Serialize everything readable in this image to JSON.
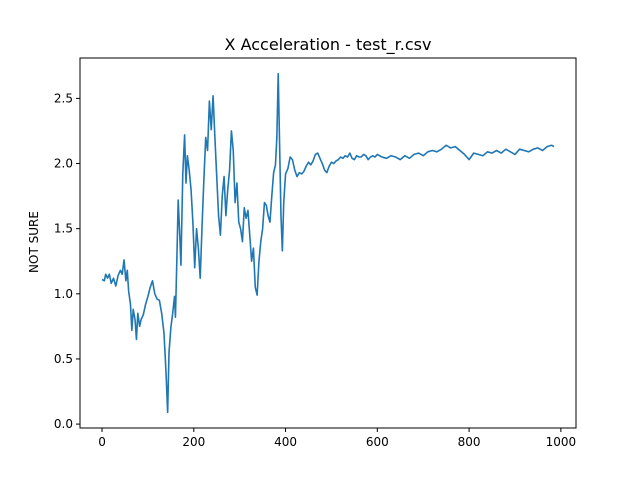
{
  "chart_data": {
    "type": "line",
    "title": "X Acceleration - test_r.csv",
    "xlabel": "",
    "ylabel": "NOT SURE",
    "xlim": [
      -48,
      1033
    ],
    "ylim": [
      -0.03,
      2.81
    ],
    "x_ticks": [
      0,
      200,
      400,
      600,
      800,
      1000
    ],
    "y_ticks": [
      0.0,
      0.5,
      1.0,
      1.5,
      2.0,
      2.5
    ],
    "x_tick_labels": [
      "0",
      "200",
      "400",
      "600",
      "800",
      "1000"
    ],
    "y_tick_labels": [
      "0.0",
      "0.5",
      "1.0",
      "1.5",
      "2.0",
      "2.5"
    ],
    "grid": false,
    "series": [
      {
        "color": "#1f77b4",
        "points": [
          [
            0,
            1.11
          ],
          [
            5,
            1.1
          ],
          [
            8,
            1.15
          ],
          [
            12,
            1.12
          ],
          [
            16,
            1.15
          ],
          [
            20,
            1.08
          ],
          [
            25,
            1.12
          ],
          [
            30,
            1.06
          ],
          [
            35,
            1.14
          ],
          [
            40,
            1.18
          ],
          [
            44,
            1.15
          ],
          [
            48,
            1.26
          ],
          [
            52,
            1.1
          ],
          [
            55,
            1.18
          ],
          [
            58,
            1.02
          ],
          [
            62,
            0.92
          ],
          [
            65,
            0.72
          ],
          [
            68,
            0.88
          ],
          [
            72,
            0.8
          ],
          [
            75,
            0.65
          ],
          [
            78,
            0.85
          ],
          [
            82,
            0.75
          ],
          [
            85,
            0.8
          ],
          [
            90,
            0.84
          ],
          [
            95,
            0.92
          ],
          [
            100,
            0.98
          ],
          [
            105,
            1.05
          ],
          [
            110,
            1.1
          ],
          [
            115,
            1.0
          ],
          [
            120,
            0.96
          ],
          [
            125,
            0.95
          ],
          [
            130,
            0.85
          ],
          [
            135,
            0.7
          ],
          [
            138,
            0.5
          ],
          [
            140,
            0.35
          ],
          [
            143,
            0.09
          ],
          [
            146,
            0.55
          ],
          [
            150,
            0.74
          ],
          [
            154,
            0.85
          ],
          [
            158,
            0.98
          ],
          [
            160,
            0.82
          ],
          [
            163,
            1.25
          ],
          [
            166,
            1.72
          ],
          [
            170,
            1.4
          ],
          [
            172,
            1.22
          ],
          [
            176,
            1.92
          ],
          [
            180,
            2.22
          ],
          [
            183,
            1.85
          ],
          [
            186,
            2.06
          ],
          [
            190,
            1.95
          ],
          [
            194,
            1.8
          ],
          [
            198,
            1.55
          ],
          [
            202,
            1.2
          ],
          [
            206,
            1.5
          ],
          [
            210,
            1.35
          ],
          [
            214,
            1.12
          ],
          [
            218,
            1.52
          ],
          [
            222,
            1.88
          ],
          [
            226,
            2.2
          ],
          [
            230,
            2.1
          ],
          [
            234,
            2.48
          ],
          [
            238,
            2.26
          ],
          [
            242,
            2.52
          ],
          [
            246,
            2.2
          ],
          [
            250,
            1.9
          ],
          [
            254,
            1.6
          ],
          [
            258,
            1.45
          ],
          [
            262,
            1.75
          ],
          [
            266,
            1.9
          ],
          [
            270,
            1.6
          ],
          [
            274,
            1.8
          ],
          [
            278,
            1.95
          ],
          [
            282,
            2.25
          ],
          [
            286,
            2.1
          ],
          [
            290,
            1.7
          ],
          [
            294,
            1.85
          ],
          [
            298,
            1.55
          ],
          [
            302,
            1.5
          ],
          [
            306,
            1.4
          ],
          [
            310,
            1.66
          ],
          [
            314,
            1.58
          ],
          [
            318,
            1.64
          ],
          [
            322,
            1.45
          ],
          [
            326,
            1.25
          ],
          [
            330,
            1.35
          ],
          [
            334,
            1.05
          ],
          [
            338,
            0.99
          ],
          [
            342,
            1.25
          ],
          [
            346,
            1.4
          ],
          [
            350,
            1.5
          ],
          [
            354,
            1.7
          ],
          [
            358,
            1.68
          ],
          [
            362,
            1.6
          ],
          [
            366,
            1.55
          ],
          [
            370,
            1.75
          ],
          [
            374,
            1.93
          ],
          [
            378,
            1.99
          ],
          [
            381,
            2.2
          ],
          [
            384,
            2.69
          ],
          [
            387,
            2.15
          ],
          [
            390,
            1.6
          ],
          [
            393,
            1.33
          ],
          [
            396,
            1.7
          ],
          [
            400,
            1.92
          ],
          [
            405,
            1.96
          ],
          [
            410,
            2.05
          ],
          [
            415,
            2.03
          ],
          [
            420,
            1.95
          ],
          [
            425,
            1.9
          ],
          [
            430,
            1.93
          ],
          [
            435,
            1.92
          ],
          [
            440,
            1.94
          ],
          [
            445,
            1.98
          ],
          [
            450,
            2.01
          ],
          [
            455,
            1.99
          ],
          [
            460,
            2.02
          ],
          [
            465,
            2.07
          ],
          [
            470,
            2.08
          ],
          [
            475,
            2.04
          ],
          [
            480,
            2.0
          ],
          [
            485,
            1.95
          ],
          [
            490,
            1.93
          ],
          [
            495,
            1.98
          ],
          [
            500,
            2.01
          ],
          [
            505,
            2.0
          ],
          [
            510,
            2.02
          ],
          [
            515,
            2.03
          ],
          [
            520,
            2.05
          ],
          [
            525,
            2.04
          ],
          [
            530,
            2.06
          ],
          [
            535,
            2.05
          ],
          [
            540,
            2.08
          ],
          [
            545,
            2.04
          ],
          [
            550,
            2.03
          ],
          [
            555,
            2.06
          ],
          [
            560,
            2.05
          ],
          [
            565,
            2.05
          ],
          [
            570,
            2.07
          ],
          [
            575,
            2.06
          ],
          [
            580,
            2.03
          ],
          [
            585,
            2.05
          ],
          [
            590,
            2.06
          ],
          [
            595,
            2.05
          ],
          [
            600,
            2.07
          ],
          [
            610,
            2.05
          ],
          [
            620,
            2.04
          ],
          [
            630,
            2.06
          ],
          [
            640,
            2.05
          ],
          [
            650,
            2.03
          ],
          [
            660,
            2.06
          ],
          [
            670,
            2.04
          ],
          [
            680,
            2.07
          ],
          [
            690,
            2.08
          ],
          [
            700,
            2.06
          ],
          [
            710,
            2.09
          ],
          [
            720,
            2.1
          ],
          [
            730,
            2.09
          ],
          [
            740,
            2.11
          ],
          [
            750,
            2.14
          ],
          [
            760,
            2.12
          ],
          [
            770,
            2.13
          ],
          [
            780,
            2.1
          ],
          [
            790,
            2.07
          ],
          [
            800,
            2.03
          ],
          [
            810,
            2.08
          ],
          [
            820,
            2.07
          ],
          [
            830,
            2.06
          ],
          [
            840,
            2.09
          ],
          [
            850,
            2.08
          ],
          [
            860,
            2.1
          ],
          [
            870,
            2.08
          ],
          [
            880,
            2.11
          ],
          [
            890,
            2.09
          ],
          [
            900,
            2.07
          ],
          [
            910,
            2.11
          ],
          [
            920,
            2.1
          ],
          [
            930,
            2.09
          ],
          [
            940,
            2.11
          ],
          [
            950,
            2.12
          ],
          [
            960,
            2.1
          ],
          [
            970,
            2.13
          ],
          [
            980,
            2.14
          ],
          [
            985,
            2.13
          ]
        ]
      }
    ]
  }
}
